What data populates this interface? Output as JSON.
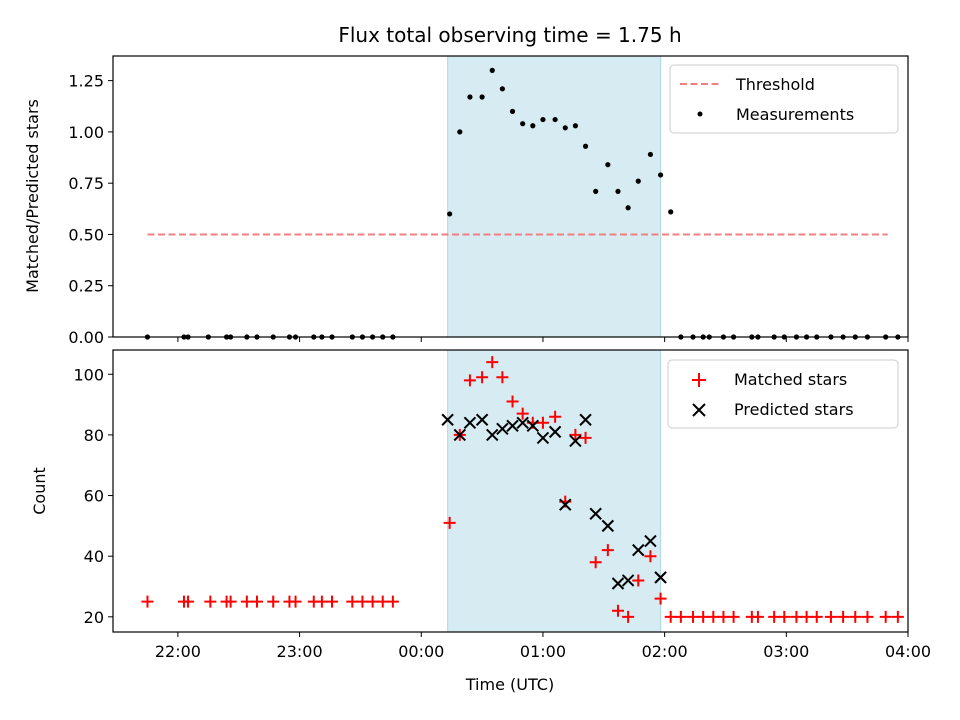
{
  "figure": {
    "title": "Flux total observing time = 1.75 h",
    "bg": "#ffffff"
  },
  "colors": {
    "threshold": "#f08080",
    "measurement": "#000000",
    "matched": "#ff0000",
    "predicted": "#000000",
    "span_fill": "#add8e6",
    "span_alpha": 0.5
  },
  "chart_data": [
    {
      "type": "scatter",
      "ylabel": "Matched/Predicted stars",
      "xlabel": "",
      "xlim": [
        "21:28",
        "04:00"
      ],
      "ylim": [
        0,
        1.37
      ],
      "yticks": [
        "0.00",
        "0.25",
        "0.50",
        "0.75",
        "1.00",
        "1.25"
      ],
      "grid": false,
      "legend_position": "upper right",
      "highlight_span": [
        "00:13",
        "01:58"
      ],
      "series": [
        {
          "name": "Threshold",
          "kind": "dashed-line",
          "x": [
            "21:45",
            "03:50"
          ],
          "y": [
            0.5,
            0.5
          ]
        },
        {
          "name": "Measurements",
          "kind": "dot",
          "x": [
            "21:45",
            "22:03",
            "22:05",
            "22:15",
            "22:24",
            "22:26",
            "22:34",
            "22:39",
            "22:47",
            "22:55",
            "22:58",
            "23:07",
            "23:11",
            "23:16",
            "23:26",
            "23:31",
            "23:36",
            "23:41",
            "23:46",
            "00:14",
            "00:19",
            "00:24",
            "00:30",
            "00:35",
            "00:40",
            "00:45",
            "00:50",
            "00:55",
            "01:00",
            "01:06",
            "01:11",
            "01:16",
            "01:21",
            "01:26",
            "01:32",
            "01:37",
            "01:42",
            "01:47",
            "01:53",
            "01:58",
            "02:03",
            "02:08",
            "02:14",
            "02:19",
            "02:22",
            "02:29",
            "02:34",
            "02:43",
            "02:46",
            "02:54",
            "02:59",
            "03:05",
            "03:10",
            "03:15",
            "03:22",
            "03:28",
            "03:34",
            "03:40",
            "03:49",
            "03:55"
          ],
          "y": [
            0,
            0,
            0,
            0,
            0,
            0,
            0,
            0,
            0,
            0,
            0,
            0,
            0,
            0,
            0,
            0,
            0,
            0,
            0,
            0.6,
            1.0,
            1.17,
            1.17,
            1.3,
            1.21,
            1.1,
            1.04,
            1.03,
            1.06,
            1.06,
            1.02,
            1.03,
            0.93,
            0.71,
            0.84,
            0.71,
            0.63,
            0.76,
            0.89,
            0.79,
            0.61,
            0,
            0,
            0,
            0,
            0,
            0,
            0,
            0,
            0,
            0,
            0,
            0,
            0,
            0,
            0,
            0,
            0,
            0,
            0
          ]
        }
      ]
    },
    {
      "type": "scatter",
      "ylabel": "Count",
      "xlabel": "Time (UTC)",
      "xlim": [
        "21:28",
        "04:00"
      ],
      "ylim": [
        15,
        108
      ],
      "yticks": [
        "20",
        "40",
        "60",
        "80",
        "100"
      ],
      "xticks": [
        "22:00",
        "23:00",
        "00:00",
        "01:00",
        "02:00",
        "03:00",
        "04:00"
      ],
      "grid": false,
      "legend_position": "upper right",
      "highlight_span": [
        "00:13",
        "01:58"
      ],
      "series": [
        {
          "name": "Matched stars",
          "kind": "plus",
          "x": [
            "21:45",
            "22:03",
            "22:05",
            "22:16",
            "22:24",
            "22:26",
            "22:34",
            "22:39",
            "22:47",
            "22:55",
            "22:58",
            "23:07",
            "23:11",
            "23:16",
            "23:26",
            "23:31",
            "23:36",
            "23:41",
            "23:46",
            "00:14",
            "00:19",
            "00:24",
            "00:30",
            "00:35",
            "00:40",
            "00:45",
            "00:50",
            "00:55",
            "01:00",
            "01:06",
            "01:11",
            "01:16",
            "01:21",
            "01:26",
            "01:32",
            "01:37",
            "01:42",
            "01:47",
            "01:53",
            "01:58",
            "02:03",
            "02:08",
            "02:14",
            "02:19",
            "02:24",
            "02:29",
            "02:34",
            "02:43",
            "02:46",
            "02:54",
            "02:59",
            "03:05",
            "03:10",
            "03:15",
            "03:22",
            "03:28",
            "03:34",
            "03:40",
            "03:49",
            "03:55"
          ],
          "y": [
            25,
            25,
            25,
            25,
            25,
            25,
            25,
            25,
            25,
            25,
            25,
            25,
            25,
            25,
            25,
            25,
            25,
            25,
            25,
            51,
            80,
            98,
            99,
            104,
            99,
            91,
            87,
            84,
            84,
            86,
            58,
            80,
            79,
            38,
            42,
            22,
            20,
            32,
            40,
            26,
            20,
            20,
            20,
            20,
            20,
            20,
            20,
            20,
            20,
            20,
            20,
            20,
            20,
            20,
            20,
            20,
            20,
            20,
            20,
            20
          ]
        },
        {
          "name": "Predicted stars",
          "kind": "x",
          "x": [
            "00:13",
            "00:19",
            "00:24",
            "00:30",
            "00:35",
            "00:40",
            "00:45",
            "00:50",
            "00:55",
            "01:00",
            "01:06",
            "01:11",
            "01:16",
            "01:21",
            "01:26",
            "01:32",
            "01:37",
            "01:42",
            "01:47",
            "01:53",
            "01:58"
          ],
          "y": [
            85,
            80,
            84,
            85,
            80,
            82,
            83,
            84,
            83,
            79,
            81,
            57,
            78,
            85,
            54,
            50,
            31,
            32,
            42,
            45,
            33
          ]
        },
        {
          "name": "",
          "kind": "x",
          "x": [
            "01:58"
          ],
          "y": [
            33
          ]
        }
      ]
    }
  ]
}
